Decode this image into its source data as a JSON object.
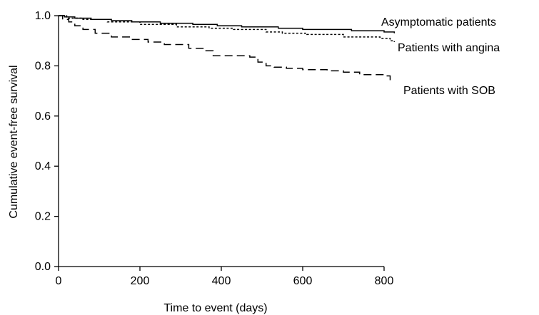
{
  "chart_data": {
    "type": "line",
    "title": "",
    "xlabel": "Time to event (days)",
    "ylabel": "Cumulative event-free survival",
    "xlim": [
      0,
      800
    ],
    "ylim": [
      0.0,
      1.0
    ],
    "x_ticks": [
      0,
      200,
      400,
      600,
      800
    ],
    "x_tick_labels": [
      "0",
      "200",
      "400",
      "600",
      "800"
    ],
    "y_ticks": [
      0.0,
      0.2,
      0.4,
      0.6,
      0.8,
      1.0
    ],
    "y_tick_labels": [
      "0.0",
      "0.2",
      "0.4",
      "0.6",
      "0.8",
      "1.0"
    ],
    "grid": false,
    "series": [
      {
        "name": "Asymptomatic patients",
        "line_style": "solid",
        "x": [
          0,
          15,
          40,
          80,
          130,
          180,
          250,
          330,
          390,
          450,
          540,
          600,
          720,
          800,
          825
        ],
        "y": [
          1.0,
          0.995,
          0.99,
          0.985,
          0.98,
          0.975,
          0.97,
          0.965,
          0.96,
          0.955,
          0.95,
          0.945,
          0.94,
          0.935,
          0.93
        ]
      },
      {
        "name": "Patients with angina",
        "line_style": "dotted",
        "x": [
          0,
          20,
          60,
          120,
          200,
          290,
          370,
          430,
          510,
          550,
          610,
          700,
          790,
          815,
          825
        ],
        "y": [
          1.0,
          0.99,
          0.985,
          0.975,
          0.965,
          0.955,
          0.95,
          0.945,
          0.935,
          0.93,
          0.925,
          0.915,
          0.91,
          0.9,
          0.895
        ]
      },
      {
        "name": "Patients with SOB",
        "line_style": "dashed",
        "x": [
          0,
          10,
          25,
          40,
          60,
          90,
          130,
          180,
          220,
          260,
          320,
          360,
          380,
          470,
          490,
          510,
          530,
          560,
          600,
          660,
          700,
          740,
          800,
          815,
          825
        ],
        "y": [
          1.0,
          0.985,
          0.975,
          0.96,
          0.945,
          0.93,
          0.915,
          0.905,
          0.895,
          0.885,
          0.87,
          0.86,
          0.84,
          0.835,
          0.815,
          0.8,
          0.795,
          0.79,
          0.785,
          0.78,
          0.775,
          0.765,
          0.76,
          0.745,
          0.745
        ]
      }
    ]
  }
}
